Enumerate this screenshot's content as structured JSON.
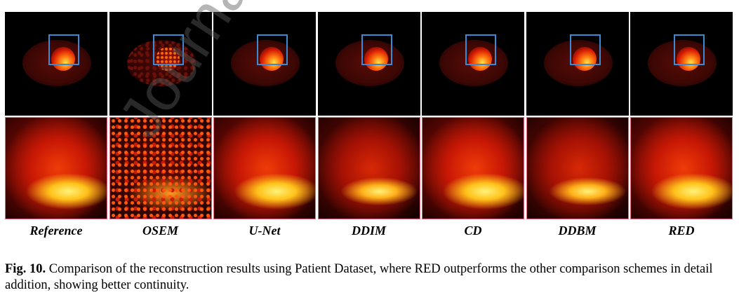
{
  "figure": {
    "columns": [
      {
        "label": "Reference",
        "style": "smooth"
      },
      {
        "label": "OSEM",
        "style": "noisy"
      },
      {
        "label": "U-Net",
        "style": "smooth"
      },
      {
        "label": "DDIM",
        "style": "dim"
      },
      {
        "label": "CD",
        "style": "smooth"
      },
      {
        "label": "DDBM",
        "style": "dim"
      },
      {
        "label": "RED",
        "style": "smooth"
      }
    ]
  },
  "caption": {
    "label": "Fig. 10.",
    "text": "Comparison of the reconstruction results using Patient Dataset, where RED outperforms the other comparison schemes in detail addition, showing better continuity."
  },
  "watermark": "Journal Pre-pr"
}
